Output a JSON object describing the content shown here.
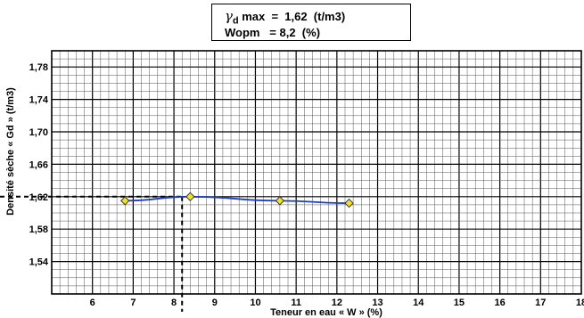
{
  "info_box": {
    "line1_symbol": "γ",
    "line1_subscript": "d",
    "line1_text": " max  =  1,62  (t/m3)",
    "line2_text": "Wopm   = 8,2  (%)"
  },
  "chart_data": {
    "type": "line",
    "title": "",
    "xlabel": "Teneur en eau « W » (%)",
    "ylabel": "Densité sèche  « Gd » (t/m3)",
    "xlim": [
      5,
      18
    ],
    "ylim": [
      1.5,
      1.8
    ],
    "x_ticks": [
      6,
      7,
      8,
      9,
      10,
      11,
      12,
      13,
      14,
      15,
      16,
      17,
      18
    ],
    "y_ticks": [
      1.54,
      1.58,
      1.62,
      1.66,
      1.7,
      1.74,
      1.78
    ],
    "y_tick_labels": [
      "1,54",
      "1,58",
      "1,62",
      "1,66",
      "1,70",
      "1,74",
      "1,78"
    ],
    "grid": true,
    "series": [
      {
        "x": [
          6.8,
          8.4,
          10.6,
          12.3
        ],
        "y": [
          1.615,
          1.62,
          1.615,
          1.612
        ],
        "color": "#1f3fbf",
        "marker_color": "#f2e32a"
      }
    ],
    "optimum": {
      "x": 8.2,
      "y": 1.62
    }
  }
}
